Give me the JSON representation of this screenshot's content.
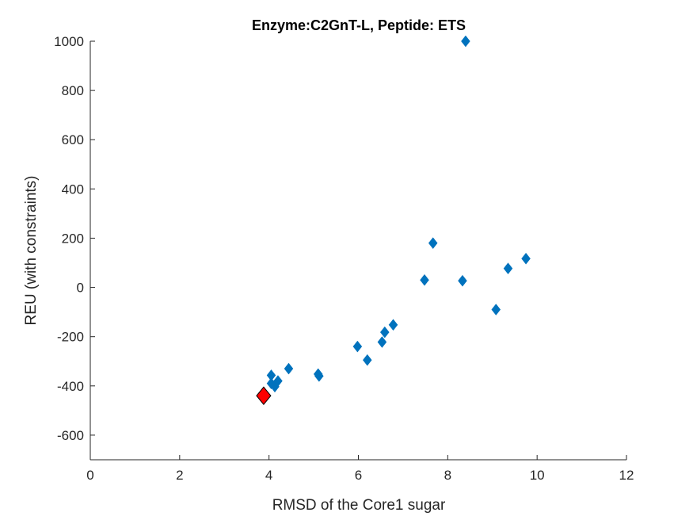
{
  "chart_data": {
    "type": "scatter",
    "title": "Enzyme:C2GnT-L, Peptide: ETS",
    "xlabel": "RMSD of the Core1 sugar",
    "ylabel": "REU (with constraints)",
    "xlim": [
      0,
      12
    ],
    "ylim": [
      -700,
      1000
    ],
    "xticks": [
      "0",
      "2",
      "4",
      "6",
      "8",
      "10",
      "12"
    ],
    "yticks": [
      "-600",
      "-400",
      "-200",
      "0",
      "200",
      "400",
      "600",
      "800",
      "1000"
    ],
    "grid": false,
    "marker": "diamond",
    "series": [
      {
        "color": "#0072BD",
        "x": [
          8.4,
          7.67,
          9.75,
          9.35,
          7.48,
          8.33,
          9.08,
          6.78,
          6.59,
          6.53,
          5.98,
          6.2,
          4.44,
          5.1,
          5.12,
          4.05,
          4.2,
          4.05,
          4.13
        ],
        "y": [
          1000,
          180,
          117,
          77,
          30,
          27,
          -90,
          -152,
          -182,
          -222,
          -240,
          -295,
          -330,
          -352,
          -360,
          -357,
          -380,
          -390,
          -403
        ]
      },
      {
        "color": "#FF0000",
        "x": [
          3.88
        ],
        "y": [
          -440
        ]
      }
    ]
  }
}
